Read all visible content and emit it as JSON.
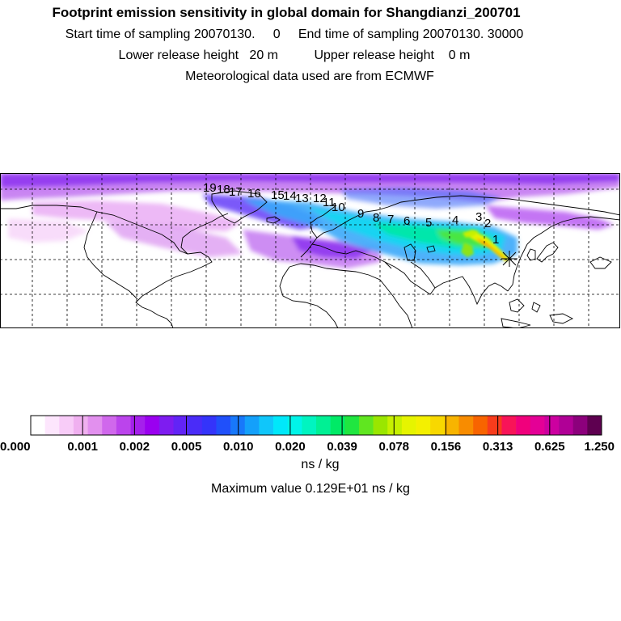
{
  "header": {
    "title": "Footprint emission sensitivity in global domain for Shangdianzi_200701",
    "line2": "Start time of sampling 20070130.     0     End time of sampling 20070130. 30000",
    "line3": "Lower release height   20 m          Upper release height    0 m",
    "line4": "Meteorological data used are from ECMWF"
  },
  "map": {
    "trajectory_labels": [
      "1",
      "2",
      "3",
      "4",
      "5",
      "6",
      "7",
      "8",
      "9",
      "10",
      "11",
      "12",
      "13",
      "14",
      "15",
      "16",
      "17",
      "18",
      "19"
    ],
    "colors": {
      "land_outline": "#000000",
      "grid": "#000000",
      "frame": "#000000"
    }
  },
  "colorbar": {
    "colors": [
      "#ffffff",
      "#fde6fd",
      "#f8ccf8",
      "#f0b0f0",
      "#e290ee",
      "#d068ec",
      "#bb44ec",
      "#a520ec",
      "#9a00f0",
      "#7e1cf0",
      "#6224f6",
      "#4a2cf8",
      "#3434fa",
      "#2050fa",
      "#1878fa",
      "#14a0fa",
      "#10c6fa",
      "#00e8fa",
      "#00f4e8",
      "#00f4c0",
      "#00f094",
      "#00ea66",
      "#20e640",
      "#60e620",
      "#9ae600",
      "#c6f000",
      "#e6f400",
      "#f4f000",
      "#f8d800",
      "#f8b400",
      "#f88c00",
      "#f86400",
      "#f83c1c",
      "#f81458",
      "#f0007c",
      "#e40096",
      "#cc00a0",
      "#b00096",
      "#8c007c",
      "#5e0050"
    ],
    "ticks": [
      "0.000",
      "0.001",
      "0.002",
      "0.005",
      "0.010",
      "0.020",
      "0.039",
      "0.078",
      "0.156",
      "0.313",
      "0.625",
      "1.250"
    ],
    "unit": "ns / kg",
    "max_label": "Maximum value  0.129E+01 ns / kg"
  }
}
